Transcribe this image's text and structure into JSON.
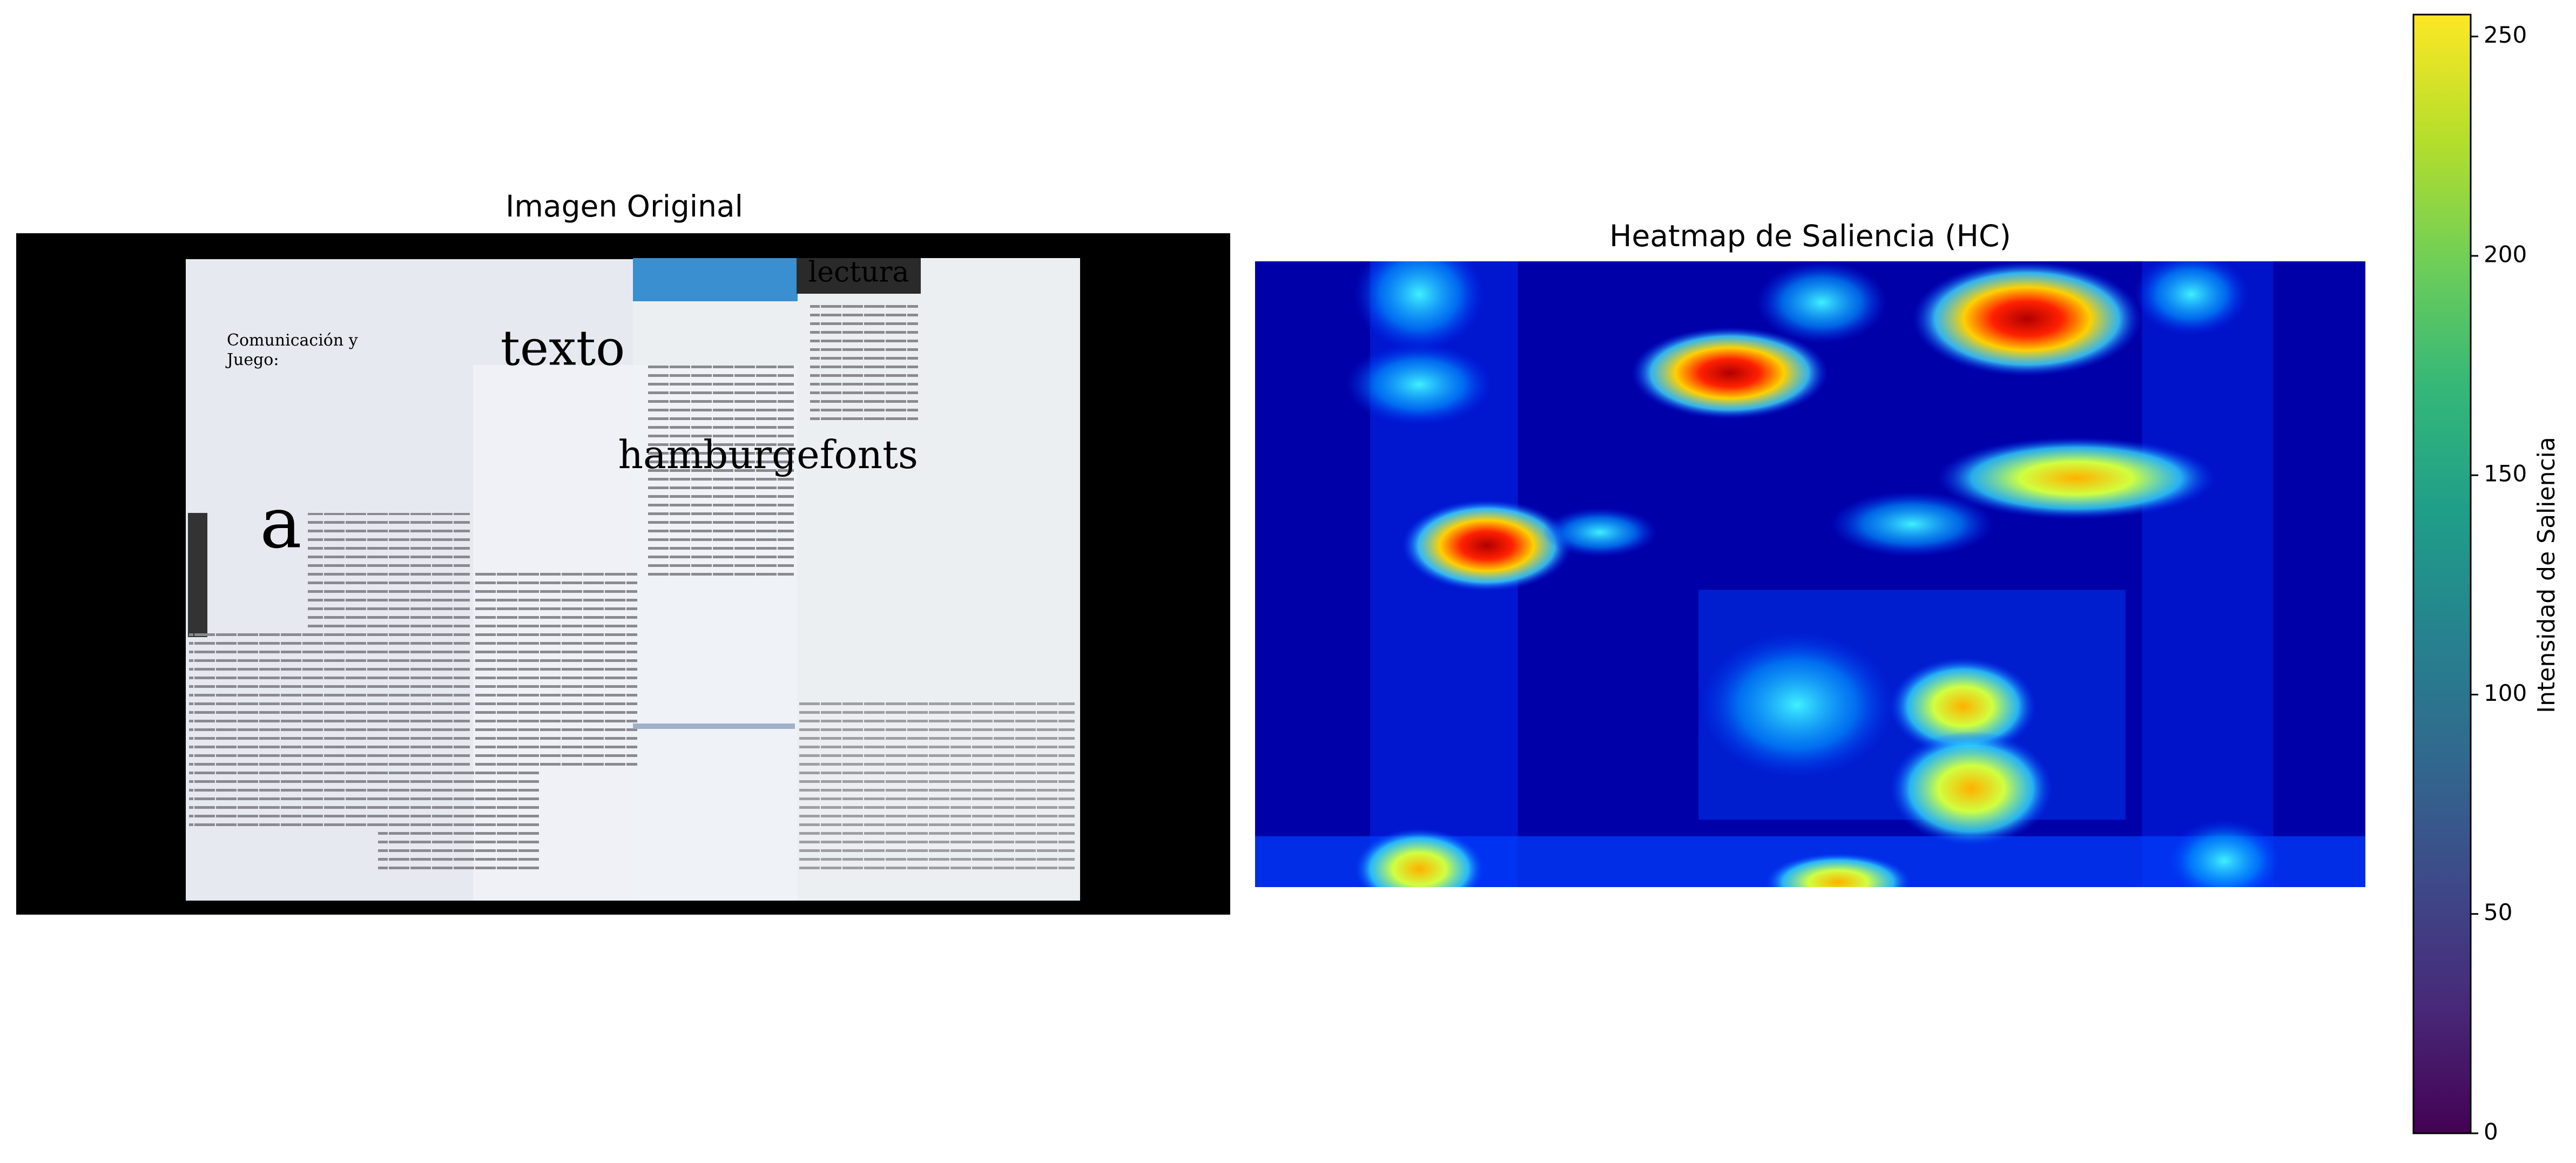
{
  "chart_data": [
    {
      "type": "image",
      "title": "Imagen Original",
      "texts": [
        "Comunicación y",
        "Juego:",
        "texto",
        "lectura",
        "hamburgefonts",
        "a"
      ]
    },
    {
      "type": "heatmap",
      "title": "Heatmap de Saliencia (HC)",
      "colormap": "jet",
      "colorbar": {
        "label": "Intensidad de Saliencia",
        "colormap": "viridis",
        "clim": [
          0,
          255
        ],
        "ticks": [
          0,
          50,
          100,
          150,
          200,
          250
        ]
      }
    }
  ]
}
